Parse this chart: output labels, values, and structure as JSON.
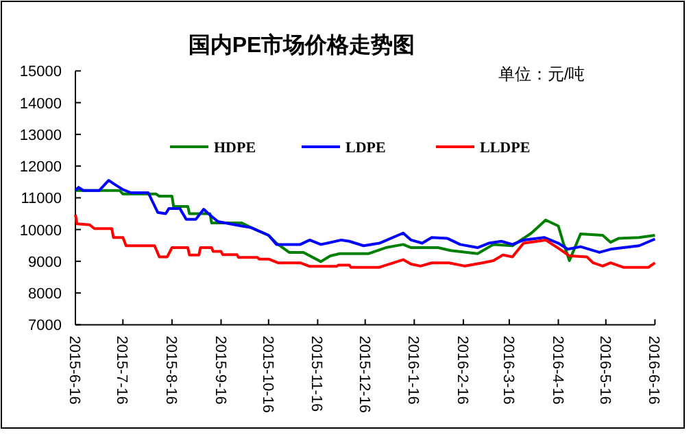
{
  "chart_data": {
    "type": "line",
    "title": "国内PE市场价格走势图",
    "annotations": [
      "单位：元/吨"
    ],
    "legend": "top",
    "xlim": [
      "2015-06-16",
      "2016-06-16"
    ],
    "xticks": [
      {
        "value": "2015-06-16",
        "label": "2015-6-16"
      },
      {
        "value": "2015-07-16",
        "label": "2015-7-16"
      },
      {
        "value": "2015-08-16",
        "label": "2015-8-16"
      },
      {
        "value": "2015-09-16",
        "label": "2015-9-16"
      },
      {
        "value": "2015-10-16",
        "label": "2015-10-16"
      },
      {
        "value": "2015-11-16",
        "label": "2015-11-16"
      },
      {
        "value": "2015-12-16",
        "label": "2015-12-16"
      },
      {
        "value": "2016-01-16",
        "label": "2016-1-16"
      },
      {
        "value": "2016-02-16",
        "label": "2016-2-16"
      },
      {
        "value": "2016-03-16",
        "label": "2016-3-16"
      },
      {
        "value": "2016-04-16",
        "label": "2016-4-16"
      },
      {
        "value": "2016-05-16",
        "label": "2016-5-16"
      },
      {
        "value": "2016-06-16",
        "label": "2016-6-16"
      }
    ],
    "ylim": [
      7000,
      15000
    ],
    "yticks": [
      7000,
      8000,
      9000,
      10000,
      11000,
      12000,
      13000,
      14000,
      15000
    ],
    "series": [
      {
        "name": "HDPE",
        "color": "#008000",
        "x": [
          "2015-06-16",
          "2015-07-14",
          "2015-07-16",
          "2015-08-06",
          "2015-08-08",
          "2015-08-16",
          "2015-08-17",
          "2015-08-26",
          "2015-08-27",
          "2015-09-09",
          "2015-09-10",
          "2015-09-29",
          "2015-10-05",
          "2015-10-16",
          "2015-10-21",
          "2015-10-29",
          "2015-11-07",
          "2015-11-18",
          "2015-11-24",
          "2015-11-30",
          "2015-12-18",
          "2015-12-29",
          "2016-01-09",
          "2016-01-14",
          "2016-01-31",
          "2016-02-08",
          "2016-02-25",
          "2016-03-06",
          "2016-03-18",
          "2016-03-30",
          "2016-04-08",
          "2016-04-16",
          "2016-04-19",
          "2016-04-23",
          "2016-04-30",
          "2016-05-14",
          "2016-05-19",
          "2016-05-24",
          "2016-06-06",
          "2016-06-16"
        ],
        "values": [
          11230,
          11230,
          11120,
          11120,
          11050,
          11050,
          10730,
          10730,
          10500,
          10500,
          10210,
          10210,
          10060,
          9820,
          9570,
          9280,
          9280,
          8990,
          9170,
          9240,
          9240,
          9430,
          9530,
          9430,
          9430,
          9340,
          9240,
          9530,
          9490,
          9890,
          10300,
          10110,
          9600,
          9020,
          9860,
          9820,
          9600,
          9720,
          9750,
          9820
        ]
      },
      {
        "name": "LDPE",
        "color": "#0000ff",
        "x": [
          "2015-06-16",
          "2015-06-18",
          "2015-06-21",
          "2015-07-01",
          "2015-07-07",
          "2015-07-10",
          "2015-07-16",
          "2015-07-21",
          "2015-08-01",
          "2015-08-07",
          "2015-08-12",
          "2015-08-14",
          "2015-08-21",
          "2015-08-25",
          "2015-08-31",
          "2015-09-05",
          "2015-09-08",
          "2015-09-14",
          "2015-09-29",
          "2015-10-05",
          "2015-10-16",
          "2015-10-21",
          "2015-11-05",
          "2015-11-11",
          "2015-11-18",
          "2015-11-22",
          "2015-12-01",
          "2015-12-06",
          "2015-12-15",
          "2015-12-25",
          "2016-01-09",
          "2016-01-14",
          "2016-01-21",
          "2016-01-27",
          "2016-02-06",
          "2016-02-14",
          "2016-02-25",
          "2016-03-03",
          "2016-03-11",
          "2016-03-18",
          "2016-03-25",
          "2016-04-07",
          "2016-04-16",
          "2016-04-22",
          "2016-04-30",
          "2016-05-12",
          "2016-05-19",
          "2016-05-27",
          "2016-06-06",
          "2016-06-16"
        ],
        "values": [
          11230,
          11330,
          11230,
          11230,
          11550,
          11450,
          11260,
          11160,
          11160,
          10540,
          10500,
          10660,
          10660,
          10320,
          10320,
          10640,
          10500,
          10250,
          10110,
          10060,
          9820,
          9530,
          9530,
          9670,
          9530,
          9570,
          9670,
          9630,
          9490,
          9570,
          9890,
          9670,
          9570,
          9750,
          9720,
          9530,
          9430,
          9570,
          9630,
          9530,
          9670,
          9750,
          9570,
          9380,
          9460,
          9280,
          9380,
          9430,
          9490,
          9700
        ]
      },
      {
        "name": "LLDPE",
        "color": "#ff0000",
        "x": [
          "2015-06-16",
          "2015-06-17",
          "2015-06-25",
          "2015-06-28",
          "2015-07-09",
          "2015-07-10",
          "2015-07-16",
          "2015-07-18",
          "2015-08-05",
          "2015-08-08",
          "2015-08-13",
          "2015-08-16",
          "2015-08-26",
          "2015-08-27",
          "2015-09-02",
          "2015-09-03",
          "2015-09-10",
          "2015-09-11",
          "2015-09-16",
          "2015-09-17",
          "2015-09-26",
          "2015-09-27",
          "2015-10-09",
          "2015-10-10",
          "2015-10-16",
          "2015-10-22",
          "2015-11-05",
          "2015-11-11",
          "2015-11-28",
          "2015-11-29",
          "2015-12-06",
          "2015-12-07",
          "2015-12-25",
          "2016-01-09",
          "2016-01-14",
          "2016-01-20",
          "2016-01-27",
          "2016-02-07",
          "2016-02-17",
          "2016-02-28",
          "2016-03-06",
          "2016-03-12",
          "2016-03-18",
          "2016-03-25",
          "2016-04-08",
          "2016-04-17",
          "2016-04-23",
          "2016-05-04",
          "2016-05-08",
          "2016-05-14",
          "2016-05-19",
          "2016-05-27",
          "2016-06-12",
          "2016-06-16"
        ],
        "values": [
          10470,
          10180,
          10150,
          10030,
          10030,
          9750,
          9750,
          9490,
          9490,
          9140,
          9140,
          9430,
          9430,
          9200,
          9200,
          9430,
          9430,
          9310,
          9310,
          9210,
          9210,
          9120,
          9120,
          9070,
          9070,
          8950,
          8950,
          8840,
          8840,
          8880,
          8880,
          8810,
          8810,
          9050,
          8910,
          8850,
          8950,
          8950,
          8850,
          8950,
          9020,
          9200,
          9140,
          9570,
          9670,
          9380,
          9170,
          9140,
          8950,
          8850,
          8950,
          8810,
          8810,
          8950
        ]
      }
    ]
  }
}
